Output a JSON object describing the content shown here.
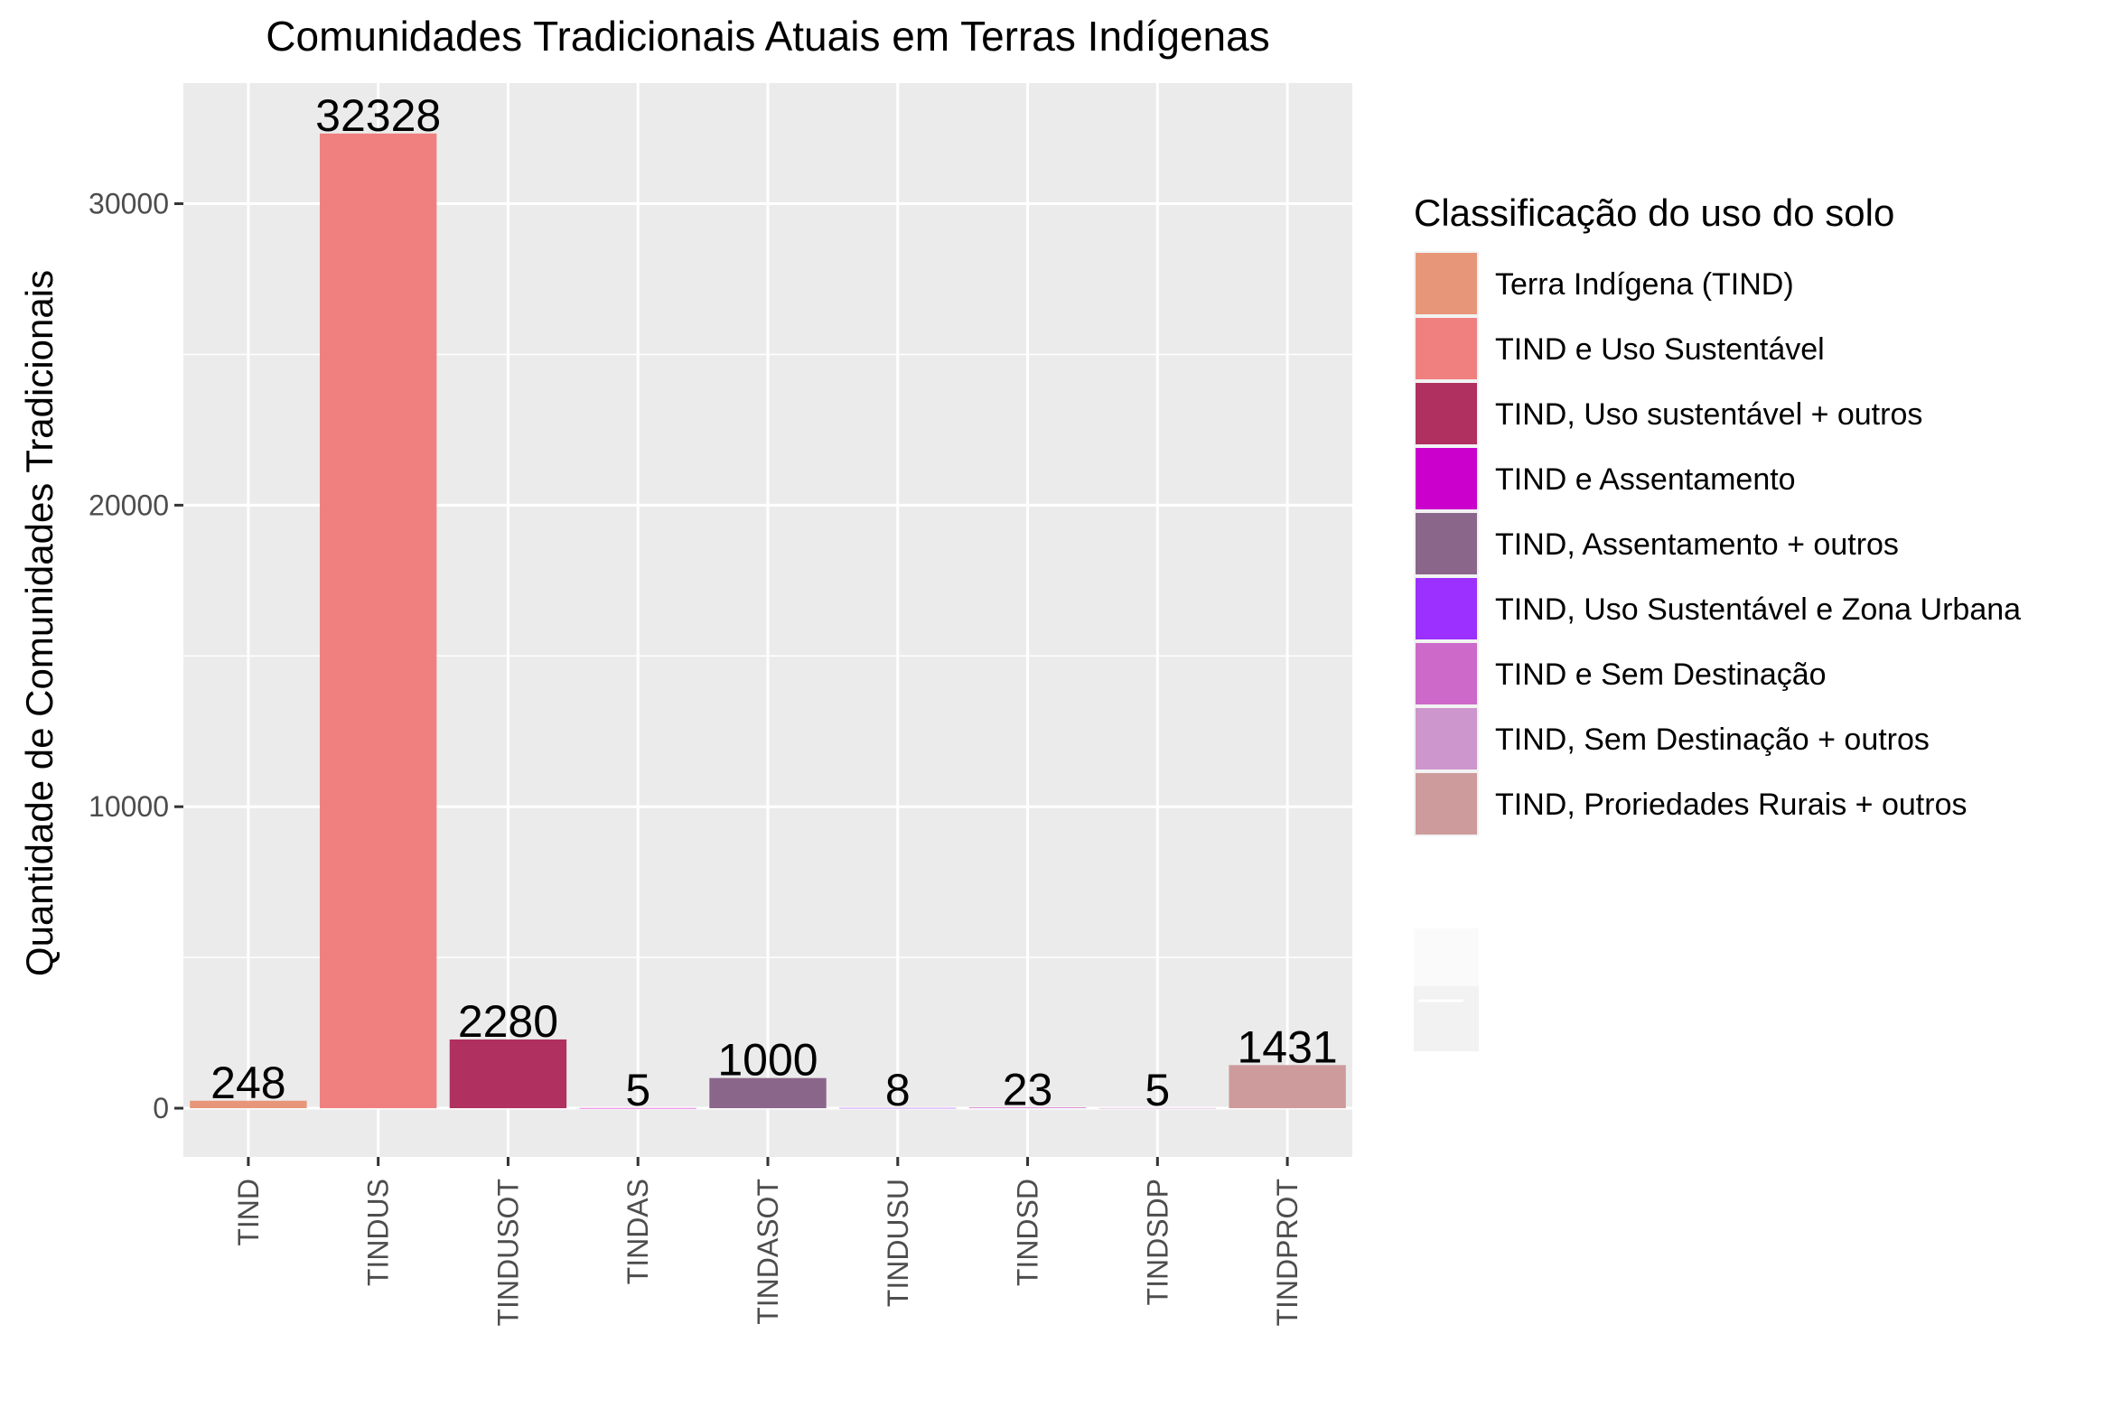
{
  "chart_data": {
    "type": "bar",
    "title": "Comunidades Tradicionais Atuais em Terras Indígenas",
    "xlabel": "",
    "ylabel": "Quantidade de Comunidades Tradicionais",
    "categories": [
      "TIND",
      "TINDUS",
      "TINDUSOT",
      "TINDAS",
      "TINDASOT",
      "TINDUSU",
      "TINDSD",
      "TINDSDP",
      "TINDPROT"
    ],
    "values": [
      248,
      32328,
      2280,
      5,
      1000,
      8,
      23,
      5,
      1431
    ],
    "value_labels": [
      "248",
      "32328",
      "2280",
      "5",
      "1000",
      "8",
      "23",
      "5",
      "1431"
    ],
    "colors": [
      "#E8967A",
      "#F08080",
      "#B03060",
      "#CC00CC",
      "#8B668B",
      "#9B30FF",
      "#CD69C9",
      "#CD96CD",
      "#CD9B9B"
    ],
    "ylim": [
      -1616,
      34000
    ],
    "yticks": [
      0,
      10000,
      20000,
      30000
    ],
    "ytick_labels": [
      "0",
      "10000",
      "20000",
      "30000"
    ],
    "grid": true,
    "panel_background": "#EBEBEB",
    "legend": {
      "title": "Classificação do uso do solo",
      "position": "right",
      "entries": [
        "Terra Indígena (TIND)",
        "TIND e Uso Sustentável",
        "TIND, Uso sustentável + outros",
        "TIND e Assentamento",
        "TIND,  Assentamento + outros",
        "TIND, Uso Sustentável e Zona Urbana",
        "TIND e Sem Destinação",
        "TIND, Sem Destinação + outros",
        "TIND, Proriedades Rurais + outros"
      ]
    }
  }
}
